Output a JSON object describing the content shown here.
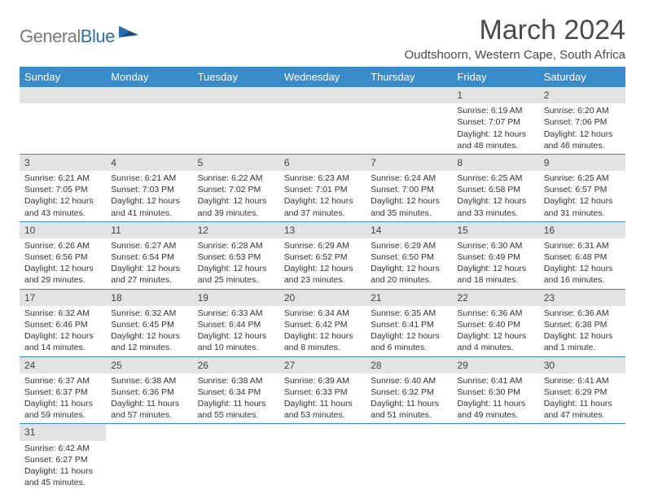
{
  "logo": {
    "part1": "General",
    "part2": "Blue"
  },
  "title": "March 2024",
  "location": "Oudtshoorn, Western Cape, South Africa",
  "header_bg": "#3a8bc9",
  "daynum_bg": "#e3e3e3",
  "border_color": "#3a8bc9",
  "days": [
    "Sunday",
    "Monday",
    "Tuesday",
    "Wednesday",
    "Thursday",
    "Friday",
    "Saturday"
  ],
  "weeks": [
    [
      null,
      null,
      null,
      null,
      null,
      {
        "n": "1",
        "sr": "Sunrise: 6:19 AM",
        "ss": "Sunset: 7:07 PM",
        "d1": "Daylight: 12 hours",
        "d2": "and 48 minutes."
      },
      {
        "n": "2",
        "sr": "Sunrise: 6:20 AM",
        "ss": "Sunset: 7:06 PM",
        "d1": "Daylight: 12 hours",
        "d2": "and 46 minutes."
      }
    ],
    [
      {
        "n": "3",
        "sr": "Sunrise: 6:21 AM",
        "ss": "Sunset: 7:05 PM",
        "d1": "Daylight: 12 hours",
        "d2": "and 43 minutes."
      },
      {
        "n": "4",
        "sr": "Sunrise: 6:21 AM",
        "ss": "Sunset: 7:03 PM",
        "d1": "Daylight: 12 hours",
        "d2": "and 41 minutes."
      },
      {
        "n": "5",
        "sr": "Sunrise: 6:22 AM",
        "ss": "Sunset: 7:02 PM",
        "d1": "Daylight: 12 hours",
        "d2": "and 39 minutes."
      },
      {
        "n": "6",
        "sr": "Sunrise: 6:23 AM",
        "ss": "Sunset: 7:01 PM",
        "d1": "Daylight: 12 hours",
        "d2": "and 37 minutes."
      },
      {
        "n": "7",
        "sr": "Sunrise: 6:24 AM",
        "ss": "Sunset: 7:00 PM",
        "d1": "Daylight: 12 hours",
        "d2": "and 35 minutes."
      },
      {
        "n": "8",
        "sr": "Sunrise: 6:25 AM",
        "ss": "Sunset: 6:58 PM",
        "d1": "Daylight: 12 hours",
        "d2": "and 33 minutes."
      },
      {
        "n": "9",
        "sr": "Sunrise: 6:25 AM",
        "ss": "Sunset: 6:57 PM",
        "d1": "Daylight: 12 hours",
        "d2": "and 31 minutes."
      }
    ],
    [
      {
        "n": "10",
        "sr": "Sunrise: 6:26 AM",
        "ss": "Sunset: 6:56 PM",
        "d1": "Daylight: 12 hours",
        "d2": "and 29 minutes."
      },
      {
        "n": "11",
        "sr": "Sunrise: 6:27 AM",
        "ss": "Sunset: 6:54 PM",
        "d1": "Daylight: 12 hours",
        "d2": "and 27 minutes."
      },
      {
        "n": "12",
        "sr": "Sunrise: 6:28 AM",
        "ss": "Sunset: 6:53 PM",
        "d1": "Daylight: 12 hours",
        "d2": "and 25 minutes."
      },
      {
        "n": "13",
        "sr": "Sunrise: 6:29 AM",
        "ss": "Sunset: 6:52 PM",
        "d1": "Daylight: 12 hours",
        "d2": "and 23 minutes."
      },
      {
        "n": "14",
        "sr": "Sunrise: 6:29 AM",
        "ss": "Sunset: 6:50 PM",
        "d1": "Daylight: 12 hours",
        "d2": "and 20 minutes."
      },
      {
        "n": "15",
        "sr": "Sunrise: 6:30 AM",
        "ss": "Sunset: 6:49 PM",
        "d1": "Daylight: 12 hours",
        "d2": "and 18 minutes."
      },
      {
        "n": "16",
        "sr": "Sunrise: 6:31 AM",
        "ss": "Sunset: 6:48 PM",
        "d1": "Daylight: 12 hours",
        "d2": "and 16 minutes."
      }
    ],
    [
      {
        "n": "17",
        "sr": "Sunrise: 6:32 AM",
        "ss": "Sunset: 6:46 PM",
        "d1": "Daylight: 12 hours",
        "d2": "and 14 minutes."
      },
      {
        "n": "18",
        "sr": "Sunrise: 6:32 AM",
        "ss": "Sunset: 6:45 PM",
        "d1": "Daylight: 12 hours",
        "d2": "and 12 minutes."
      },
      {
        "n": "19",
        "sr": "Sunrise: 6:33 AM",
        "ss": "Sunset: 6:44 PM",
        "d1": "Daylight: 12 hours",
        "d2": "and 10 minutes."
      },
      {
        "n": "20",
        "sr": "Sunrise: 6:34 AM",
        "ss": "Sunset: 6:42 PM",
        "d1": "Daylight: 12 hours",
        "d2": "and 8 minutes."
      },
      {
        "n": "21",
        "sr": "Sunrise: 6:35 AM",
        "ss": "Sunset: 6:41 PM",
        "d1": "Daylight: 12 hours",
        "d2": "and 6 minutes."
      },
      {
        "n": "22",
        "sr": "Sunrise: 6:36 AM",
        "ss": "Sunset: 6:40 PM",
        "d1": "Daylight: 12 hours",
        "d2": "and 4 minutes."
      },
      {
        "n": "23",
        "sr": "Sunrise: 6:36 AM",
        "ss": "Sunset: 6:38 PM",
        "d1": "Daylight: 12 hours",
        "d2": "and 1 minute."
      }
    ],
    [
      {
        "n": "24",
        "sr": "Sunrise: 6:37 AM",
        "ss": "Sunset: 6:37 PM",
        "d1": "Daylight: 11 hours",
        "d2": "and 59 minutes."
      },
      {
        "n": "25",
        "sr": "Sunrise: 6:38 AM",
        "ss": "Sunset: 6:36 PM",
        "d1": "Daylight: 11 hours",
        "d2": "and 57 minutes."
      },
      {
        "n": "26",
        "sr": "Sunrise: 6:38 AM",
        "ss": "Sunset: 6:34 PM",
        "d1": "Daylight: 11 hours",
        "d2": "and 55 minutes."
      },
      {
        "n": "27",
        "sr": "Sunrise: 6:39 AM",
        "ss": "Sunset: 6:33 PM",
        "d1": "Daylight: 11 hours",
        "d2": "and 53 minutes."
      },
      {
        "n": "28",
        "sr": "Sunrise: 6:40 AM",
        "ss": "Sunset: 6:32 PM",
        "d1": "Daylight: 11 hours",
        "d2": "and 51 minutes."
      },
      {
        "n": "29",
        "sr": "Sunrise: 6:41 AM",
        "ss": "Sunset: 6:30 PM",
        "d1": "Daylight: 11 hours",
        "d2": "and 49 minutes."
      },
      {
        "n": "30",
        "sr": "Sunrise: 6:41 AM",
        "ss": "Sunset: 6:29 PM",
        "d1": "Daylight: 11 hours",
        "d2": "and 47 minutes."
      }
    ],
    [
      {
        "n": "31",
        "sr": "Sunrise: 6:42 AM",
        "ss": "Sunset: 6:27 PM",
        "d1": "Daylight: 11 hours",
        "d2": "and 45 minutes."
      },
      null,
      null,
      null,
      null,
      null,
      null
    ]
  ]
}
